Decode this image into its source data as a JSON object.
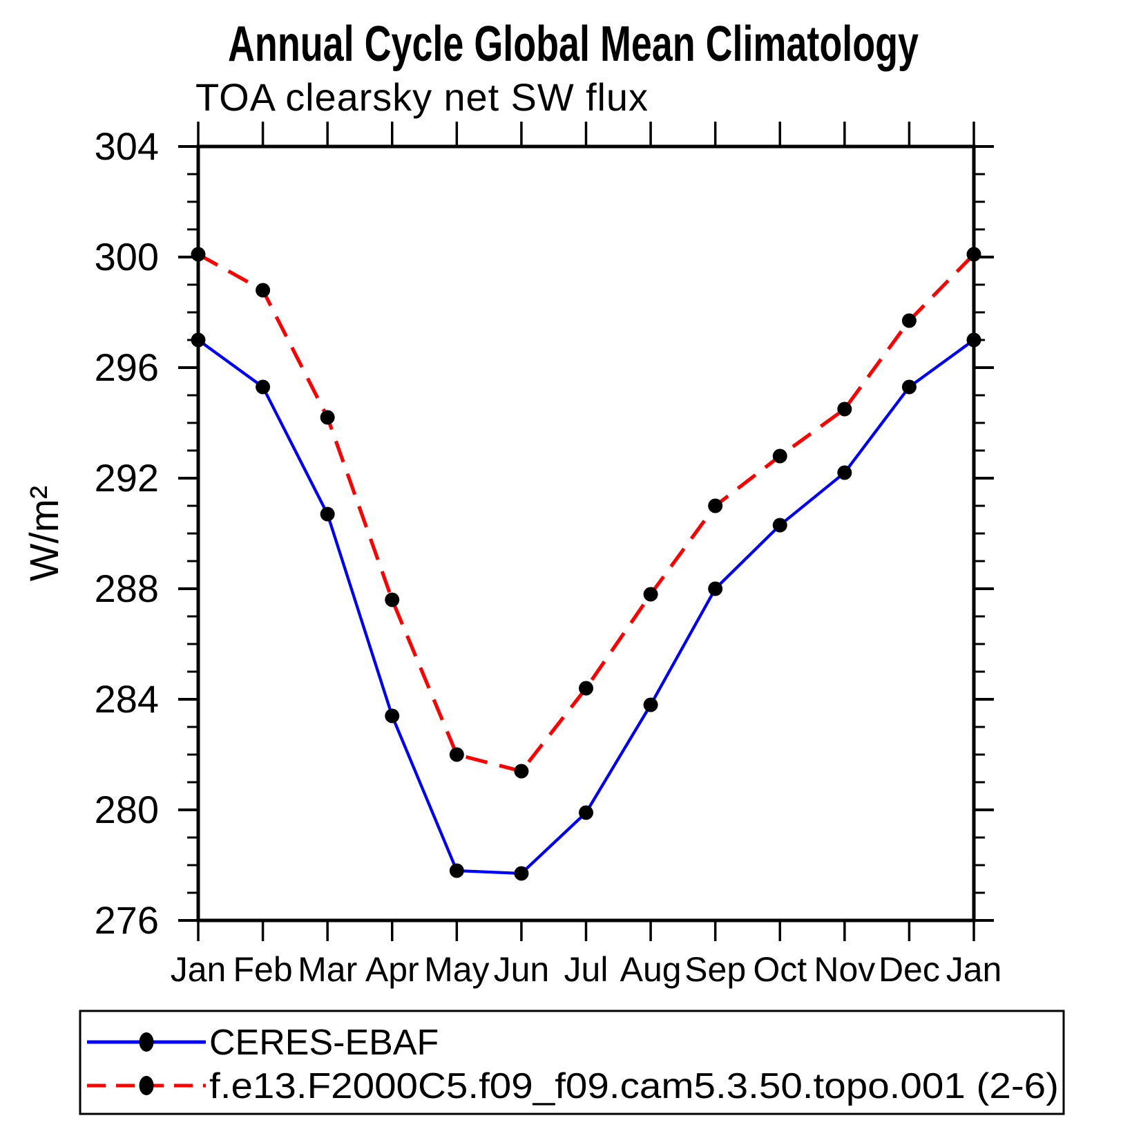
{
  "title": "Annual Cycle Global Mean Climatology",
  "subtitle": "TOA clearsky net SW flux",
  "y_axis": {
    "label": "W/m²",
    "min": 276,
    "max": 304,
    "major_step": 4,
    "minor_step": 1,
    "tick_labels": [
      "304",
      "300",
      "296",
      "292",
      "288",
      "284",
      "280",
      "276"
    ]
  },
  "x_axis": {
    "tick_labels": [
      "Jan",
      "Feb",
      "Mar",
      "Apr",
      "May",
      "Jun",
      "Jul",
      "Aug",
      "Sep",
      "Oct",
      "Nov",
      "Dec",
      "Jan"
    ]
  },
  "legend": {
    "items": [
      {
        "label": "CERES-EBAF",
        "color": "#0000ff",
        "line_style": "solid",
        "marker": "filled-black-circle"
      },
      {
        "label": "f.e13.F2000C5.f09_f09.cam5.3.50.topo.001 (2-6)",
        "color": "#ff0000",
        "line_style": "dashed",
        "marker": "filled-black-circle"
      }
    ]
  },
  "chart_data": {
    "type": "line",
    "title": "Annual Cycle Global Mean Climatology",
    "subtitle": "TOA clearsky net SW flux",
    "ylabel": "W/m²",
    "xlabel": "",
    "ylim": [
      276,
      304
    ],
    "y_major_step": 4,
    "y_minor_step": 1,
    "grid": false,
    "legend_position": "bottom",
    "categories": [
      "Jan",
      "Feb",
      "Mar",
      "Apr",
      "May",
      "Jun",
      "Jul",
      "Aug",
      "Sep",
      "Oct",
      "Nov",
      "Dec",
      "Jan"
    ],
    "series": [
      {
        "name": "CERES-EBAF",
        "color": "#0000ff",
        "line_style": "solid",
        "marker": "circle",
        "marker_color": "#000000",
        "values": [
          297.0,
          295.3,
          290.7,
          283.4,
          277.8,
          277.7,
          279.9,
          283.8,
          288.0,
          290.3,
          292.2,
          295.3,
          297.0
        ]
      },
      {
        "name": "f.e13.F2000C5.f09_f09.cam5.3.50.topo.001 (2-6)",
        "color": "#ff0000",
        "line_style": "dashed",
        "marker": "circle",
        "marker_color": "#000000",
        "values": [
          300.1,
          298.8,
          294.2,
          287.6,
          282.0,
          281.4,
          284.4,
          287.8,
          291.0,
          292.8,
          294.5,
          297.7,
          300.1
        ]
      }
    ]
  }
}
